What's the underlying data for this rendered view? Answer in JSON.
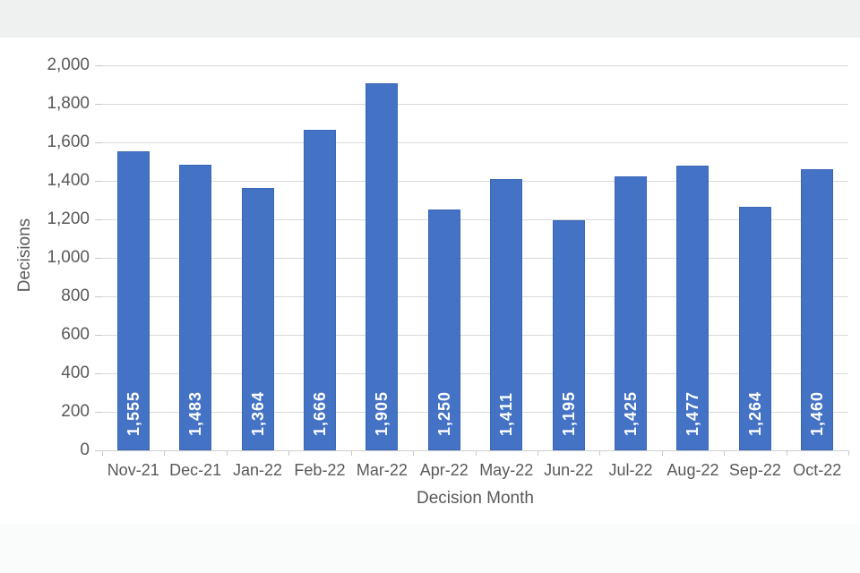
{
  "chart_data": {
    "type": "bar",
    "title": "",
    "categories": [
      "Nov-21",
      "Dec-21",
      "Jan-22",
      "Feb-22",
      "Mar-22",
      "Apr-22",
      "May-22",
      "Jun-22",
      "Jul-22",
      "Aug-22",
      "Sep-22",
      "Oct-22"
    ],
    "values": [
      1555,
      1483,
      1364,
      1666,
      1905,
      1250,
      1411,
      1195,
      1425,
      1477,
      1264,
      1460
    ],
    "value_labels": [
      "1,555",
      "1,483",
      "1,364",
      "1,666",
      "1,905",
      "1,250",
      "1,411",
      "1,195",
      "1,425",
      "1,477",
      "1,264",
      "1,460"
    ],
    "xlabel": "Decision Month",
    "ylabel": "Decisions",
    "ylim": [
      0,
      2000
    ],
    "ytick_step": 200,
    "y_tick_labels": [
      "0",
      "200",
      "400",
      "600",
      "800",
      "1,000",
      "1,200",
      "1,400",
      "1,600",
      "1,800",
      "2,000"
    ],
    "grid": true,
    "legend": "none",
    "colors": {
      "bar_fill": "#4472C4",
      "bar_border": "#3A67B8",
      "bar_value_label": "#FFFFFF",
      "axis_text": "#595959",
      "gridline": "#D9D9D9",
      "page_band_top": "#EFF1F1",
      "page_band_bottom": "#FAFBFB"
    }
  }
}
